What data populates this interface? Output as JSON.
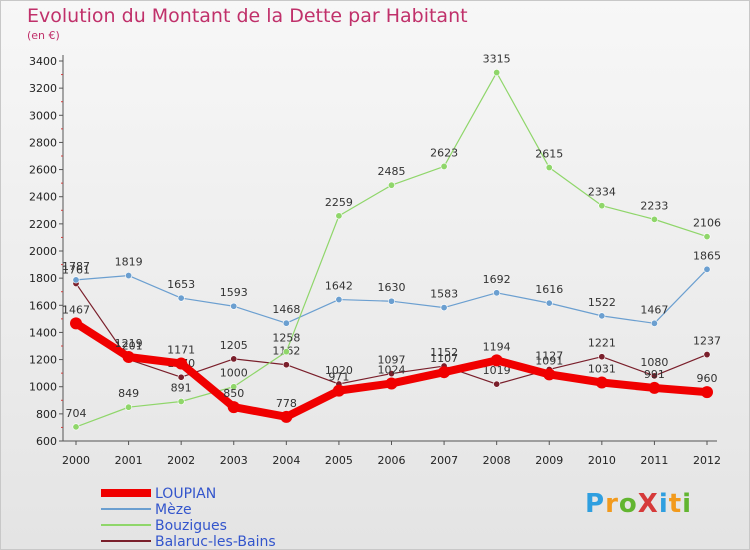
{
  "header": {
    "title": "Evolution du Montant de la Dette par Habitant",
    "subtitle": "(en €)"
  },
  "brand": {
    "text": "ProXiti",
    "colors": [
      "#2f9fe0",
      "#f29a1c",
      "#62b530",
      "#d63a3a",
      "#2f9fe0",
      "#f29a1c",
      "#62b530"
    ]
  },
  "chart_data": {
    "type": "line",
    "title": "Evolution du Montant de la Dette par Habitant",
    "subtitle": "(en €)",
    "x": [
      "2000",
      "2001",
      "2002",
      "2003",
      "2004",
      "2005",
      "2006",
      "2007",
      "2008",
      "2009",
      "2010",
      "2011",
      "2012"
    ],
    "ylim": [
      600,
      3400
    ],
    "yticks": [
      600,
      800,
      1000,
      1200,
      1400,
      1600,
      1800,
      2000,
      2200,
      2400,
      2600,
      2800,
      3000,
      3200,
      3400
    ],
    "grid": false,
    "legend_position": "bottom-left",
    "series": [
      {
        "name": "Balaruc-les-Bains",
        "color": "#7a1f2b",
        "values": [
          1761,
          1201,
          1070,
          1205,
          1162,
          1020,
          1097,
          1152,
          1019,
          1127,
          1221,
          1080,
          1237
        ]
      },
      {
        "name": "Mèze",
        "color": "#6b9fd0",
        "values": [
          1787,
          1819,
          1653,
          1593,
          1468,
          1642,
          1630,
          1583,
          1692,
          1616,
          1522,
          1467,
          1865
        ]
      },
      {
        "name": "Bouzigues",
        "color": "#8fd66a",
        "values": [
          704,
          849,
          891,
          1000,
          1258,
          2259,
          2485,
          2623,
          3315,
          2615,
          2334,
          2233,
          2106
        ]
      },
      {
        "name": "LOUPIAN",
        "color": "#f00000",
        "values": [
          1467,
          1219,
          1171,
          850,
          778,
          971,
          1024,
          1107,
          1194,
          1091,
          1031,
          991,
          960
        ]
      }
    ],
    "legend": [
      {
        "name": "LOUPIAN",
        "color": "#f00000",
        "text_color": "#3355cc"
      },
      {
        "name": "Mèze",
        "color": "#6b9fd0",
        "text_color": "#3355cc"
      },
      {
        "name": "Bouzigues",
        "color": "#8fd66a",
        "text_color": "#3355cc"
      },
      {
        "name": "Balaruc-les-Bains",
        "color": "#7a1f2b",
        "text_color": "#3355cc"
      }
    ]
  }
}
